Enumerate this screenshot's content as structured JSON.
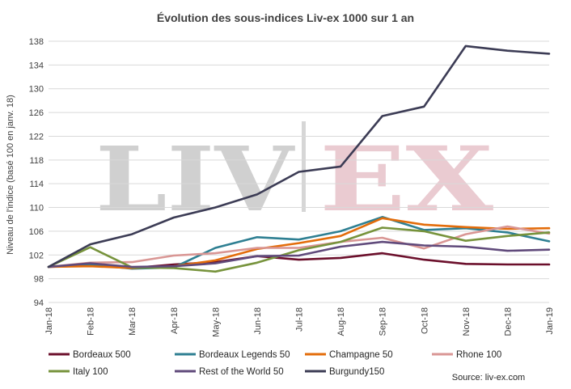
{
  "chart_data": {
    "type": "line",
    "title": "Évolution des sous-indices Liv-ex 1000 sur 1 an",
    "ylabel": "Niveau de l'indice (basé 100 en janv. 18)",
    "xlabel": "",
    "ylim": [
      94,
      138
    ],
    "yticks": [
      94,
      98,
      102,
      106,
      110,
      114,
      118,
      122,
      126,
      130,
      134,
      138
    ],
    "categories": [
      "Jan-18",
      "Feb-18",
      "Mar-18",
      "Apr-18",
      "May-18",
      "Jun-18",
      "Jul-18",
      "Aug-18",
      "Sep-18",
      "Oct-18",
      "Nov-18",
      "Dec-18",
      "Jan-19"
    ],
    "grid": true,
    "legend_position": "bottom",
    "series": [
      {
        "name": "Bordeaux 500",
        "color": "#6b0f2b",
        "values": [
          100,
          100.2,
          99.8,
          100.4,
          100.8,
          101.8,
          101.2,
          101.5,
          102.3,
          101.2,
          100.5,
          100.4,
          100.4
        ]
      },
      {
        "name": "Bordeaux Legends 50",
        "color": "#2e7f92",
        "values": [
          100,
          100.4,
          99.7,
          99.9,
          103.2,
          105,
          104.6,
          106,
          108.4,
          106.2,
          106.5,
          105.8,
          104.3
        ]
      },
      {
        "name": "Champagne 50",
        "color": "#e36c0a",
        "values": [
          100,
          100.1,
          99.8,
          100.1,
          101.1,
          103,
          104,
          105.2,
          108.2,
          107.1,
          106.7,
          106.4,
          106.5
        ]
      },
      {
        "name": "Rhone 100",
        "color": "#d99694",
        "values": [
          100,
          100.7,
          100.8,
          101.9,
          102.3,
          103.2,
          103.2,
          104.2,
          104.9,
          103.1,
          105.5,
          106.8,
          105.6
        ]
      },
      {
        "name": "Italy 100",
        "color": "#77933c",
        "values": [
          100,
          103.3,
          99.9,
          99.8,
          99.2,
          100.7,
          102.8,
          104.2,
          106.6,
          106,
          104.4,
          105.2,
          105.8
        ]
      },
      {
        "name": "Rest of the World 50",
        "color": "#604a7b",
        "values": [
          100,
          100.6,
          100,
          100.1,
          100.6,
          101.8,
          101.9,
          103.4,
          104.2,
          103.6,
          103.4,
          102.7,
          102.9
        ]
      },
      {
        "name": "Burgundy150",
        "color": "#3c3c55",
        "values": [
          100,
          103.8,
          105.5,
          108.3,
          110,
          112.2,
          116,
          116.9,
          125.4,
          127,
          137.2,
          136.4,
          135.9
        ]
      }
    ],
    "source": "Source: liv-ex.com",
    "watermark": {
      "left": "LIV",
      "right": "EX",
      "left_color": "#c8c8c8",
      "right_color": "#e8c6cd"
    }
  }
}
